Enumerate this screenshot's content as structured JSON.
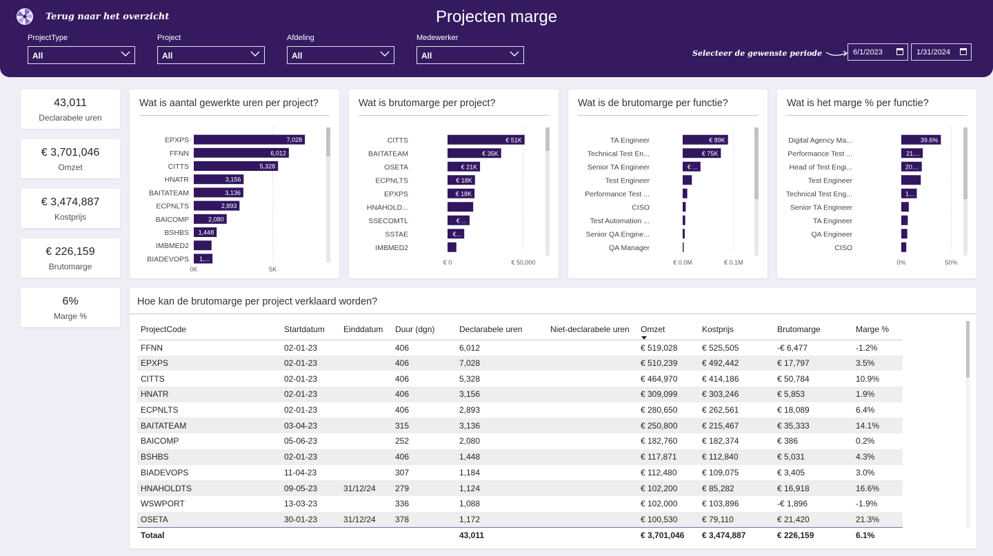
{
  "header": {
    "back_label": "Terug naar het overzicht",
    "title": "Projecten marge",
    "period_hint": "Selecteer de  gewenste periode",
    "date_start": "6/1/2023",
    "date_end": "1/31/2024",
    "filters": [
      {
        "label": "ProjectType",
        "value": "All"
      },
      {
        "label": "Project",
        "value": "All"
      },
      {
        "label": "Afdeling",
        "value": "All"
      },
      {
        "label": "Medewerker",
        "value": "All"
      }
    ]
  },
  "kpis": [
    {
      "value": "43,011",
      "label": "Declarabele uren"
    },
    {
      "value": "€ 3,701,046",
      "label": "Omzet"
    },
    {
      "value": "€ 3,474,887",
      "label": "Kostprijs"
    },
    {
      "value": "€ 226,159",
      "label": "Brutomarge"
    },
    {
      "value": "6%",
      "label": "Marge %"
    }
  ],
  "colors": {
    "header_bg": "#351a60",
    "bar": "#321660",
    "background": "#efedf5"
  },
  "chart_data": [
    {
      "type": "bar",
      "orientation": "horizontal",
      "title": "Wat is aantal gewerkte uren per project?",
      "categories": [
        "EPXPS",
        "FFNN",
        "CITTS",
        "HNATR",
        "BAITATEAM",
        "ECPNLTS",
        "BAICOMP",
        "BSHBS",
        "IMBMED2",
        "BIADEVOPS"
      ],
      "values": [
        7028,
        6012,
        5328,
        3156,
        3136,
        2893,
        2080,
        1448,
        1124,
        1184
      ],
      "labels": [
        "7,028",
        "6,012",
        "5,328",
        "3,156",
        "3,136",
        "2,893",
        "2,080",
        "1,448",
        "",
        "1,..."
      ],
      "xlim": [
        0,
        7500
      ],
      "xticks": [
        {
          "value": 0,
          "label": "0K"
        },
        {
          "value": 5000,
          "label": "5K"
        }
      ],
      "grid": true
    },
    {
      "type": "bar",
      "orientation": "horizontal",
      "title": "Wat is brutomarge per project?",
      "categories": [
        "CITTS",
        "BAITATEAM",
        "OSETA",
        "ECPNLTS",
        "EPXPS",
        "HNAHOLD...",
        "SSECOMTL",
        "SSTAE",
        "IMBMED2"
      ],
      "values": [
        50784,
        35333,
        21420,
        18089,
        17797,
        16918,
        14500,
        11000,
        5800
      ],
      "labels": [
        "€ 51K",
        "€ 35K",
        "€ 21K",
        "€ 18K",
        "€ 18K",
        "",
        "€ ...",
        "€...",
        ""
      ],
      "xlim": [
        0,
        60000
      ],
      "xticks": [
        {
          "value": 0,
          "label": "€ 0"
        },
        {
          "value": 50000,
          "label": "€ 50,000"
        }
      ],
      "grid": true
    },
    {
      "type": "bar",
      "orientation": "horizontal",
      "title": "Wat is de brutomarge per functie?",
      "categories": [
        "TA Engineer",
        "Technical Test En...",
        "Senior TA Engineer",
        "Test Engineer",
        "Performance Test ...",
        "CISO",
        "Test Automation ...",
        "Senior QA Engine...",
        "QA Manager"
      ],
      "values": [
        89000,
        75000,
        35000,
        18000,
        9000,
        6000,
        5000,
        4000,
        2000
      ],
      "labels": [
        "€ 89K",
        "€ 75K",
        "€ ...",
        "",
        "",
        "",
        "",
        "",
        ""
      ],
      "xlim": [
        0,
        130000
      ],
      "xticks": [
        {
          "value": 0,
          "label": "€ 0.0M"
        },
        {
          "value": 100000,
          "label": "€ 0.1M"
        }
      ],
      "grid": true
    },
    {
      "type": "bar",
      "orientation": "horizontal",
      "title": "Wat is het marge % per functie?",
      "categories": [
        "Digital Agency Ma...",
        "Performance Test ...",
        "Head of Test Engi...",
        "Test Engineer",
        "Technical Test Eng...",
        "Senior TA Engineer",
        "TA Engineer",
        "QA Engineer",
        "CISO"
      ],
      "values": [
        39.6,
        21.5,
        20.5,
        19.5,
        15.5,
        7.5,
        6.5,
        6.0,
        5.0
      ],
      "labels": [
        "39.6%",
        "21....",
        "20....",
        "",
        "1...",
        "",
        "",
        "",
        ""
      ],
      "xlim": [
        0,
        60
      ],
      "xticks": [
        {
          "value": 0,
          "label": "0%"
        },
        {
          "value": 50,
          "label": "50%"
        }
      ],
      "grid": true
    }
  ],
  "table": {
    "title": "Hoe kan de brutomarge per project verklaard worden?",
    "columns": [
      "ProjectCode",
      "Startdatum",
      "Einddatum",
      "Duur (dgn)",
      "Declarabele uren",
      "Niet-declarabele uren",
      "Omzet",
      "Kostprijs",
      "Brutomarge",
      "Marge %"
    ],
    "rows": [
      [
        "FFNN",
        "02-01-23",
        "",
        "406",
        "6,012",
        "",
        "€ 519,028",
        "€ 525,505",
        "-€ 6,477",
        "-1.2%"
      ],
      [
        "EPXPS",
        "02-01-23",
        "",
        "406",
        "7,028",
        "",
        "€ 510,239",
        "€ 492,442",
        "€ 17,797",
        "3.5%"
      ],
      [
        "CITTS",
        "02-01-23",
        "",
        "406",
        "5,328",
        "",
        "€ 464,970",
        "€ 414,186",
        "€ 50,784",
        "10.9%"
      ],
      [
        "HNATR",
        "02-01-23",
        "",
        "406",
        "3,156",
        "",
        "€ 309,099",
        "€ 303,246",
        "€ 5,853",
        "1.9%"
      ],
      [
        "ECPNLTS",
        "02-01-23",
        "",
        "406",
        "2,893",
        "",
        "€ 280,650",
        "€ 262,561",
        "€ 18,089",
        "6.4%"
      ],
      [
        "BAITATEAM",
        "03-04-23",
        "",
        "315",
        "3,136",
        "",
        "€ 250,800",
        "€ 215,467",
        "€ 35,333",
        "14.1%"
      ],
      [
        "BAICOMP",
        "05-06-23",
        "",
        "252",
        "2,080",
        "",
        "€ 182,760",
        "€ 182,374",
        "€ 386",
        "0.2%"
      ],
      [
        "BSHBS",
        "02-01-23",
        "",
        "406",
        "1,448",
        "",
        "€ 117,871",
        "€ 112,840",
        "€ 5,031",
        "4.3%"
      ],
      [
        "BIADEVOPS",
        "11-04-23",
        "",
        "307",
        "1,184",
        "",
        "€ 112,480",
        "€ 109,075",
        "€ 3,405",
        "3.0%"
      ],
      [
        "HNAHOLDTS",
        "09-05-23",
        "31/12/24",
        "279",
        "1,124",
        "",
        "€ 102,200",
        "€ 85,282",
        "€ 16,918",
        "16.6%"
      ],
      [
        "WSWPORT",
        "13-03-23",
        "",
        "336",
        "1,088",
        "",
        "€ 102,000",
        "€ 103,896",
        "-€ 1,896",
        "-1.9%"
      ],
      [
        "OSETA",
        "30-01-23",
        "31/12/24",
        "378",
        "1,172",
        "",
        "€ 100,530",
        "€ 79,110",
        "€ 21,420",
        "21.3%"
      ]
    ],
    "total": [
      "Totaal",
      "",
      "",
      "",
      "43,011",
      "",
      "€ 3,701,046",
      "€ 3,474,887",
      "€ 226,159",
      "6.1%"
    ]
  }
}
